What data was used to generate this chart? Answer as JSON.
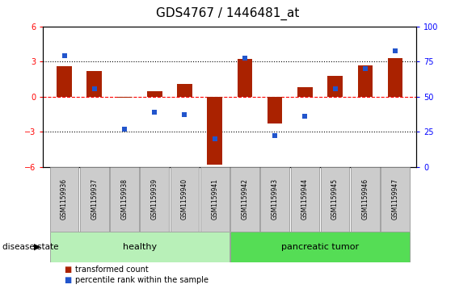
{
  "title": "GDS4767 / 1446481_at",
  "samples": [
    "GSM1159936",
    "GSM1159937",
    "GSM1159938",
    "GSM1159939",
    "GSM1159940",
    "GSM1159941",
    "GSM1159942",
    "GSM1159943",
    "GSM1159944",
    "GSM1159945",
    "GSM1159946",
    "GSM1159947"
  ],
  "red_bars": [
    2.6,
    2.2,
    -0.1,
    0.5,
    1.1,
    -5.8,
    3.2,
    -2.3,
    0.8,
    1.8,
    2.7,
    3.3
  ],
  "blue_squares_left_scale": [
    3.5,
    0.7,
    -2.8,
    -1.3,
    -1.5,
    -3.6,
    3.3,
    -3.3,
    -1.7,
    0.7,
    2.4,
    3.9
  ],
  "ylim_left": [
    -6,
    6
  ],
  "ylim_right": [
    0,
    100
  ],
  "yticks_left": [
    -6,
    -3,
    0,
    3,
    6
  ],
  "yticks_right": [
    0,
    25,
    50,
    75,
    100
  ],
  "hlines": [
    3,
    0,
    -3
  ],
  "hline_styles": [
    "dotted",
    "dashed",
    "dotted"
  ],
  "hline_colors": [
    "black",
    "red",
    "black"
  ],
  "bar_color": "#aa2200",
  "square_color": "#2255cc",
  "groups": [
    {
      "label": "healthy",
      "start": 0,
      "end": 5,
      "color": "#b8f0b8"
    },
    {
      "label": "pancreatic tumor",
      "start": 6,
      "end": 11,
      "color": "#55dd55"
    }
  ],
  "disease_state_label": "disease state",
  "legend_items": [
    {
      "color": "#aa2200",
      "label": "transformed count"
    },
    {
      "color": "#2255cc",
      "label": "percentile rank within the sample"
    }
  ],
  "title_fontsize": 11,
  "bar_width": 0.5,
  "square_size": 18
}
